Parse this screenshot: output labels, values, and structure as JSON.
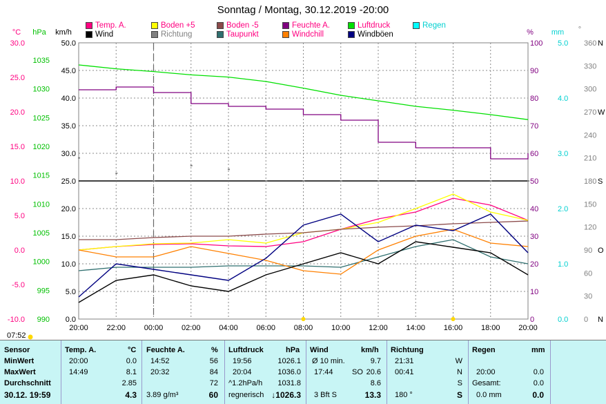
{
  "title": "Sonntag / Montag, 30.12.2019 -20:00",
  "legend": [
    {
      "label": "Temp. A.",
      "color": "#ff0080",
      "text_color": "#ff0080"
    },
    {
      "label": "Boden +5",
      "color": "#ffff00",
      "text_color": "#ff0080"
    },
    {
      "label": "Boden -5",
      "color": "#8b4a4a",
      "text_color": "#ff0080"
    },
    {
      "label": "Feuchte A.",
      "color": "#800080",
      "text_color": "#ff0080"
    },
    {
      "label": "Luftdruck",
      "color": "#00e000",
      "text_color": "#ff0080"
    },
    {
      "label": "Regen",
      "color": "#00ffff",
      "text_color": "#00d0d0"
    },
    {
      "label": "Wind",
      "color": "#000000",
      "text_color": "#000000"
    },
    {
      "label": "Richtung",
      "color": "#808080",
      "text_color": "#808080"
    },
    {
      "label": "Taupunkt",
      "color": "#2f6f6f",
      "text_color": "#ff0080"
    },
    {
      "label": "Windchill",
      "color": "#ff8000",
      "text_color": "#ff0080"
    },
    {
      "label": "Windböen",
      "color": "#000080",
      "text_color": "#000000"
    }
  ],
  "axis_units": {
    "temp": "°C",
    "pressure": "hPa",
    "wind": "km/h",
    "humidity": "%",
    "rain": "mm",
    "direction": "°"
  },
  "axes": {
    "temp_ticks": [
      "30.0",
      "25.0",
      "20.0",
      "15.0",
      "10.0",
      "5.0",
      "0.0",
      "-5.0",
      "-10.0"
    ],
    "pressure_ticks": [
      "1035",
      "1030",
      "1025",
      "1020",
      "1015",
      "1010",
      "1005",
      "1000",
      "995",
      "990"
    ],
    "wind_ticks": [
      "50.0",
      "45.0",
      "40.0",
      "35.0",
      "30.0",
      "25.0",
      "20.0",
      "15.0",
      "10.0",
      "5.0",
      "0.0"
    ],
    "humidity_ticks": [
      "100",
      "90",
      "80",
      "70",
      "60",
      "50",
      "40",
      "30",
      "20",
      "10",
      "0"
    ],
    "rain_ticks": [
      "5.0",
      "4.0",
      "3.0",
      "2.0",
      "1.0",
      "0.0"
    ],
    "direction_ticks": [
      {
        "value": "360",
        "label": "N"
      },
      {
        "value": "330",
        "label": ""
      },
      {
        "value": "300",
        "label": ""
      },
      {
        "value": "270",
        "label": "W"
      },
      {
        "value": "240",
        "label": ""
      },
      {
        "value": "210",
        "label": ""
      },
      {
        "value": "180",
        "label": "S"
      },
      {
        "value": "150",
        "label": ""
      },
      {
        "value": "120",
        "label": ""
      },
      {
        "value": "90",
        "label": "O"
      },
      {
        "value": "60",
        "label": ""
      },
      {
        "value": "30",
        "label": ""
      },
      {
        "value": "0",
        "label": "N"
      }
    ],
    "x_ticks": [
      "20:00",
      "22:00",
      "00:00",
      "02:00",
      "04:00",
      "06:00",
      "08:00",
      "10:00",
      "12:00",
      "14:00",
      "16:00",
      "18:00",
      "20:00"
    ]
  },
  "chart_data": {
    "type": "line",
    "title": "Sonntag / Montag, 30.12.2019 -20:00",
    "x": [
      "20:00",
      "22:00",
      "00:00",
      "02:00",
      "04:00",
      "06:00",
      "08:00",
      "10:00",
      "12:00",
      "14:00",
      "16:00",
      "18:00",
      "20:00"
    ],
    "ylim_temp": [
      -10,
      30
    ],
    "ylim_pressure": [
      990,
      1040
    ],
    "ylim_wind": [
      0,
      50
    ],
    "ylim_humidity": [
      0,
      100
    ],
    "ylim_rain": [
      0,
      5
    ],
    "series": [
      {
        "name": "Luftdruck",
        "values": [
          1036.0,
          1035.3,
          1034.8,
          1034.2,
          1033.8,
          1033.0,
          1031.8,
          1030.5,
          1029.5,
          1028.5,
          1027.8,
          1027.0,
          1026.1
        ]
      },
      {
        "name": "Feuchte A.",
        "values": [
          83,
          84,
          82,
          78,
          77,
          76,
          74,
          72,
          64,
          62,
          62,
          58,
          60
        ]
      },
      {
        "name": "Temp. A.",
        "values": [
          0.0,
          0.5,
          0.8,
          0.9,
          0.6,
          0.5,
          1.2,
          3.0,
          4.5,
          5.5,
          7.5,
          6.5,
          4.3
        ]
      },
      {
        "name": "Boden +5",
        "values": [
          0.0,
          0.5,
          0.9,
          1.0,
          1.5,
          1.0,
          2.5,
          3.0,
          4.0,
          6.0,
          8.1,
          5.5,
          4.3
        ]
      },
      {
        "name": "Boden -5",
        "values": [
          1.5,
          1.5,
          1.8,
          2.0,
          2.0,
          2.3,
          2.5,
          3.0,
          3.3,
          3.5,
          3.8,
          4.0,
          4.2
        ]
      },
      {
        "name": "Taupunkt",
        "values": [
          -3.0,
          -2.5,
          -2.5,
          -2.5,
          -2.3,
          -2.3,
          -2.3,
          -2.5,
          -1.0,
          0.5,
          1.5,
          -1.0,
          -2.0
        ]
      },
      {
        "name": "Windchill",
        "values": [
          0.0,
          -1.0,
          -1.0,
          0.5,
          -0.5,
          -1.5,
          -3.0,
          -3.5,
          0.0,
          2.0,
          3.0,
          1.0,
          0.5
        ]
      },
      {
        "name": "Wind",
        "values": [
          3,
          7,
          8,
          6,
          5,
          8,
          10,
          12,
          10,
          14,
          13,
          12,
          8
        ]
      },
      {
        "name": "Windböen",
        "values": [
          4,
          10,
          9,
          8,
          7,
          11,
          17,
          19,
          14,
          17,
          16,
          19,
          12
        ]
      },
      {
        "name": "Richtung",
        "values": [
          210,
          190,
          180,
          200,
          195,
          180,
          180,
          180,
          180,
          180,
          180,
          180,
          180
        ]
      }
    ]
  },
  "markers": {
    "top_left_time": "07:52"
  },
  "table": {
    "row_labels": [
      "Sensor",
      "MinWert",
      "MaxWert",
      "Durchschnitt",
      "30.12. 19:59"
    ],
    "temp": {
      "header": "Temp. A.",
      "unit": "°C",
      "min_time": "20:00",
      "min": "0.0",
      "max_time": "14:49",
      "max": "8.1",
      "avg": "2.85",
      "current": "4.3"
    },
    "humidity": {
      "header": "Feuchte A.",
      "unit": "%",
      "min_time": "14:52",
      "min": "56",
      "max_time": "20:32",
      "max": "84",
      "avg": "72",
      "current_extra": "3.89 g/m³",
      "current": "60"
    },
    "pressure": {
      "header": "Luftdruck",
      "unit": "hPa",
      "min_time": "19:56",
      "min": "1026.1",
      "max_time": "20:04",
      "max": "1036.0",
      "avg_label": "^1.2hPa/h",
      "avg": "1031.8",
      "current_extra": "regnerisch",
      "current": "↓1026.3"
    },
    "wind": {
      "header": "Wind",
      "unit": "km/h",
      "min_time": "Ø 10 min.",
      "min": "9.7",
      "max_time": "17:44",
      "max_dir": "SO",
      "max": "20.6",
      "avg": "8.6",
      "current_extra": "3 Bft S",
      "current": "13.3"
    },
    "direction": {
      "header": "Richtung",
      "min_time": "21:31",
      "min": "W",
      "max_time": "00:41",
      "max": "N",
      "avg": "S",
      "current_extra": "180 °",
      "current": "S"
    },
    "rain": {
      "header": "Regen",
      "unit": "mm",
      "max_time": "20:00",
      "max": "0.0",
      "avg_label": "Gesamt:",
      "avg": "0.0",
      "current_extra": "0.0 mm",
      "current": "0.0"
    }
  }
}
